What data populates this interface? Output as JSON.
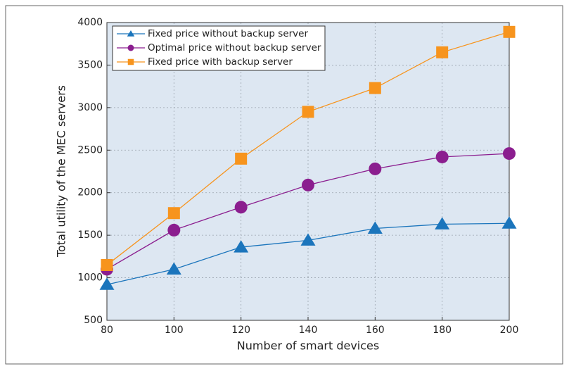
{
  "chart_data": {
    "type": "line",
    "x_label": "Number of smart devices",
    "y_label": "Total utility of the MEC servers",
    "x": [
      80,
      100,
      120,
      140,
      160,
      180,
      200
    ],
    "series": [
      {
        "name": "Fixed price without backup server",
        "color": "#1b75bc",
        "marker": "triangle",
        "values": [
          920,
          1100,
          1360,
          1440,
          1580,
          1630,
          1640
        ]
      },
      {
        "name": "Optimal price without backup server",
        "color": "#8b1e8f",
        "marker": "circle",
        "values": [
          1100,
          1560,
          1830,
          2090,
          2280,
          2420,
          2460
        ]
      },
      {
        "name": "Fixed price with backup server",
        "color": "#f7941d",
        "marker": "square",
        "values": [
          1150,
          1760,
          2400,
          2950,
          3230,
          3650,
          3890
        ]
      }
    ],
    "xlim": [
      80,
      200
    ],
    "xticks": [
      80,
      100,
      120,
      140,
      160,
      180,
      200
    ],
    "ylim": [
      500,
      4000
    ],
    "yticks": [
      500,
      1000,
      1500,
      2000,
      2500,
      3000,
      3500,
      4000
    ],
    "grid": true,
    "legend": "upper left"
  }
}
